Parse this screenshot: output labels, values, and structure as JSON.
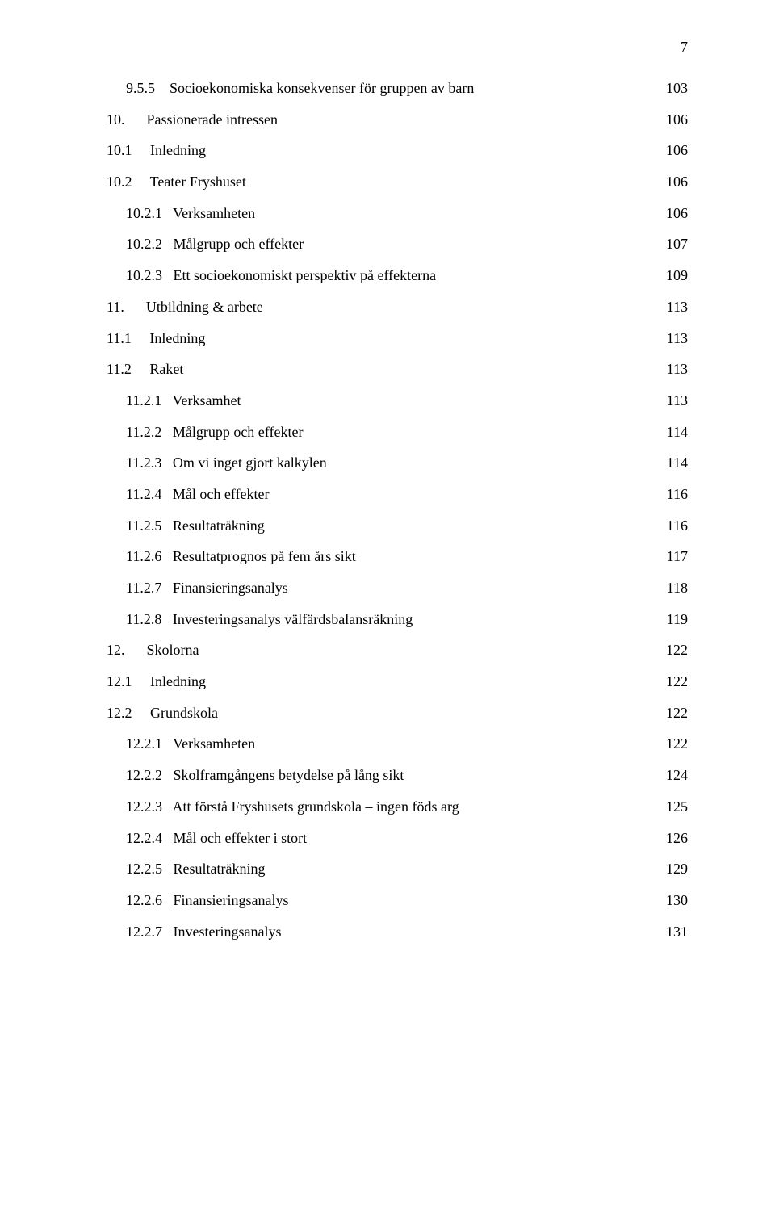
{
  "page_number": "7",
  "entries": [
    {
      "level": 3,
      "num": "9.5.5",
      "text": "Socioekonomiska konsekvenser för gruppen av barn",
      "page": "103"
    },
    {
      "level": 1,
      "num": "10.",
      "text": "Passionerade intressen",
      "page": "106"
    },
    {
      "level": 2,
      "num": "10.1",
      "text": "Inledning",
      "page": "106"
    },
    {
      "level": 2,
      "num": "10.2",
      "text": "Teater Fryshuset",
      "page": "106"
    },
    {
      "level": 3,
      "num": "10.2.1",
      "text": "Verksamheten",
      "page": "106"
    },
    {
      "level": 3,
      "num": "10.2.2",
      "text": "Målgrupp och effekter",
      "page": "107"
    },
    {
      "level": 3,
      "num": "10.2.3",
      "text": "Ett socioekonomiskt perspektiv på effekterna",
      "page": "109"
    },
    {
      "level": 1,
      "num": "11.",
      "text": "Utbildning & arbete",
      "page": "113"
    },
    {
      "level": 2,
      "num": "11.1",
      "text": "Inledning",
      "page": "113"
    },
    {
      "level": 2,
      "num": "11.2",
      "text": "Raket",
      "page": "113"
    },
    {
      "level": 3,
      "num": "11.2.1",
      "text": "Verksamhet",
      "page": "113"
    },
    {
      "level": 3,
      "num": "11.2.2",
      "text": "Målgrupp och effekter",
      "page": "114"
    },
    {
      "level": 3,
      "num": "11.2.3",
      "text": "Om vi inget gjort kalkylen",
      "page": "114"
    },
    {
      "level": 3,
      "num": "11.2.4",
      "text": "Mål och effekter",
      "page": "116"
    },
    {
      "level": 3,
      "num": "11.2.5",
      "text": "Resultaträkning",
      "page": "116"
    },
    {
      "level": 3,
      "num": "11.2.6",
      "text": "Resultatprognos på fem års sikt",
      "page": "117"
    },
    {
      "level": 3,
      "num": "11.2.7",
      "text": "Finansieringsanalys",
      "page": "118"
    },
    {
      "level": 3,
      "num": "11.2.8",
      "text": "Investeringsanalys välfärdsbalansräkning",
      "page": "119"
    },
    {
      "level": 1,
      "num": "12.",
      "text": "Skolorna",
      "page": "122"
    },
    {
      "level": 2,
      "num": "12.1",
      "text": "Inledning",
      "page": "122"
    },
    {
      "level": 2,
      "num": "12.2",
      "text": "Grundskola",
      "page": "122"
    },
    {
      "level": 3,
      "num": "12.2.1",
      "text": "Verksamheten",
      "page": "122"
    },
    {
      "level": 3,
      "num": "12.2.2",
      "text": "Skolframgångens betydelse på lång sikt",
      "page": "124"
    },
    {
      "level": 3,
      "num": "12.2.3",
      "text": "Att förstå Fryshusets grundskola – ingen föds arg",
      "page": "125"
    },
    {
      "level": 3,
      "num": "12.2.4",
      "text": "Mål och effekter i stort",
      "page": "126"
    },
    {
      "level": 3,
      "num": "12.2.5",
      "text": "Resultaträkning",
      "page": "129"
    },
    {
      "level": 3,
      "num": "12.2.6",
      "text": "Finansieringsanalys",
      "page": "130"
    },
    {
      "level": 3,
      "num": "12.2.7",
      "text": "Investeringsanalys",
      "page": "131"
    }
  ],
  "num_field_width": 9,
  "sep": "   "
}
